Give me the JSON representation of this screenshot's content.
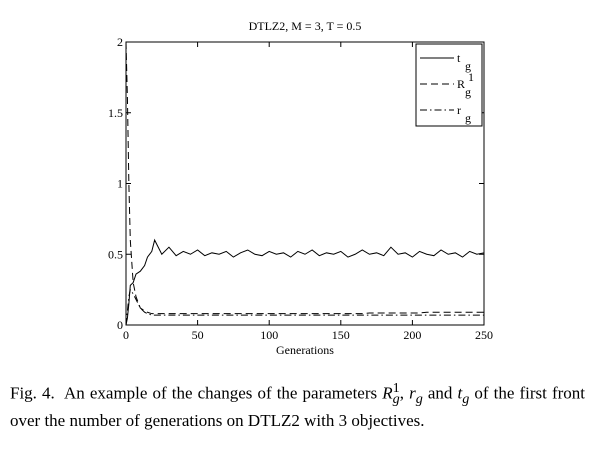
{
  "chart_data": {
    "type": "line",
    "title": "DTLZ2, M = 3, T = 0.5",
    "x_label": "Generations",
    "x": [
      0,
      1,
      2,
      3,
      5,
      7,
      10,
      13,
      15,
      18,
      20,
      25,
      30,
      35,
      40,
      45,
      50,
      55,
      60,
      65,
      70,
      75,
      80,
      85,
      90,
      95,
      100,
      105,
      110,
      115,
      120,
      125,
      130,
      135,
      140,
      145,
      150,
      155,
      160,
      165,
      170,
      175,
      180,
      185,
      190,
      195,
      200,
      205,
      210,
      215,
      220,
      225,
      230,
      235,
      240,
      245,
      250
    ],
    "xlim": [
      0,
      250
    ],
    "xticks": [
      0,
      50,
      100,
      150,
      200,
      250
    ],
    "ylim": [
      0,
      2
    ],
    "yticks": [
      0,
      0.5,
      1,
      1.5,
      2
    ],
    "legend": "upper right",
    "series": [
      {
        "name": "t",
        "subscript": "g",
        "color": "#000000",
        "dash": "solid",
        "values": [
          0,
          0.05,
          0.15,
          0.28,
          0.3,
          0.36,
          0.38,
          0.42,
          0.48,
          0.52,
          0.6,
          0.5,
          0.55,
          0.49,
          0.52,
          0.5,
          0.53,
          0.49,
          0.51,
          0.5,
          0.52,
          0.48,
          0.51,
          0.53,
          0.5,
          0.49,
          0.52,
          0.5,
          0.51,
          0.48,
          0.52,
          0.5,
          0.53,
          0.49,
          0.51,
          0.5,
          0.52,
          0.48,
          0.5,
          0.53,
          0.5,
          0.51,
          0.49,
          0.55,
          0.5,
          0.51,
          0.48,
          0.52,
          0.5,
          0.49,
          0.53,
          0.5,
          0.51,
          0.48,
          0.52,
          0.5,
          0.51
        ]
      },
      {
        "name": "R",
        "subscript": "g",
        "superscript": "1",
        "color": "#000000",
        "dash": "dashed",
        "values": [
          2,
          1.6,
          1.0,
          0.6,
          0.3,
          0.2,
          0.12,
          0.1,
          0.09,
          0.08,
          0.08,
          0.08,
          0.08,
          0.08,
          0.08,
          0.08,
          0.08,
          0.08,
          0.08,
          0.08,
          0.08,
          0.08,
          0.08,
          0.08,
          0.08,
          0.08,
          0.08,
          0.08,
          0.08,
          0.08,
          0.08,
          0.08,
          0.08,
          0.08,
          0.08,
          0.08,
          0.08,
          0.08,
          0.08,
          0.08,
          0.085,
          0.085,
          0.085,
          0.085,
          0.085,
          0.085,
          0.085,
          0.085,
          0.09,
          0.09,
          0.09,
          0.09,
          0.09,
          0.09,
          0.09,
          0.09,
          0.09
        ]
      },
      {
        "name": "r",
        "subscript": "g",
        "color": "#000000",
        "dash": "dashdot",
        "values": [
          0,
          0.1,
          0.2,
          0.25,
          0.22,
          0.18,
          0.12,
          0.09,
          0.08,
          0.07,
          0.07,
          0.07,
          0.07,
          0.07,
          0.07,
          0.07,
          0.07,
          0.07,
          0.07,
          0.07,
          0.07,
          0.07,
          0.07,
          0.07,
          0.07,
          0.07,
          0.07,
          0.07,
          0.07,
          0.07,
          0.07,
          0.07,
          0.07,
          0.07,
          0.07,
          0.07,
          0.07,
          0.07,
          0.07,
          0.07,
          0.07,
          0.07,
          0.07,
          0.07,
          0.07,
          0.07,
          0.07,
          0.07,
          0.07,
          0.07,
          0.07,
          0.07,
          0.07,
          0.07,
          0.07,
          0.07,
          0.07
        ]
      }
    ]
  },
  "caption": {
    "label": "Fig. 4.",
    "parts": [
      "An example of the changes of the parameters ",
      "R",
      "g",
      "1",
      ", ",
      "r",
      "g",
      " and ",
      "t",
      "g",
      " of the first front over the number of generations on DTLZ2 with 3 objectives."
    ]
  }
}
